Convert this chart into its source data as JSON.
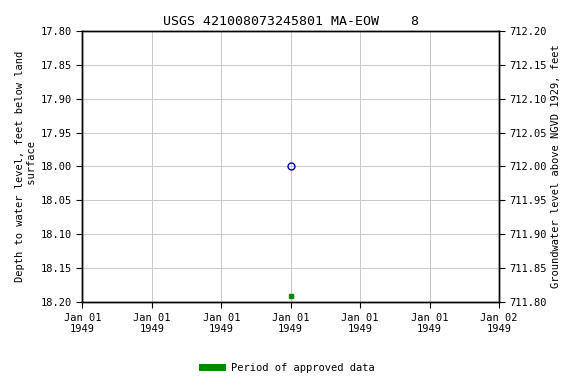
{
  "title": "USGS 421008073245801 MA-EOW    8",
  "ylabel_left": "Depth to water level, feet below land\n surface",
  "ylabel_right": "Groundwater level above NGVD 1929, feet",
  "ylim_left": [
    18.2,
    17.8
  ],
  "ylim_right": [
    711.8,
    712.2
  ],
  "yticks_left": [
    17.8,
    17.85,
    17.9,
    17.95,
    18.0,
    18.05,
    18.1,
    18.15,
    18.2
  ],
  "yticks_right": [
    711.8,
    711.85,
    711.9,
    711.95,
    712.0,
    712.05,
    712.1,
    712.15,
    712.2
  ],
  "xlim": [
    0,
    6
  ],
  "xtick_positions": [
    0,
    1,
    2,
    3,
    4,
    5,
    6
  ],
  "xtick_labels": [
    "Jan 01\n1949",
    "Jan 01\n1949",
    "Jan 01\n1949",
    "Jan 01\n1949",
    "Jan 01\n1949",
    "Jan 01\n1949",
    "Jan 02\n1949"
  ],
  "point_open_x": 3,
  "point_open_y": 18.0,
  "point_open_color": "#0000bb",
  "point_filled_x": 3,
  "point_filled_y": 18.19,
  "point_filled_color": "#008800",
  "grid_color": "#c8c8c8",
  "background_color": "#ffffff",
  "title_fontsize": 9.5,
  "label_fontsize": 7.5,
  "tick_fontsize": 7.5,
  "legend_label": "Period of approved data",
  "legend_color": "#008800"
}
